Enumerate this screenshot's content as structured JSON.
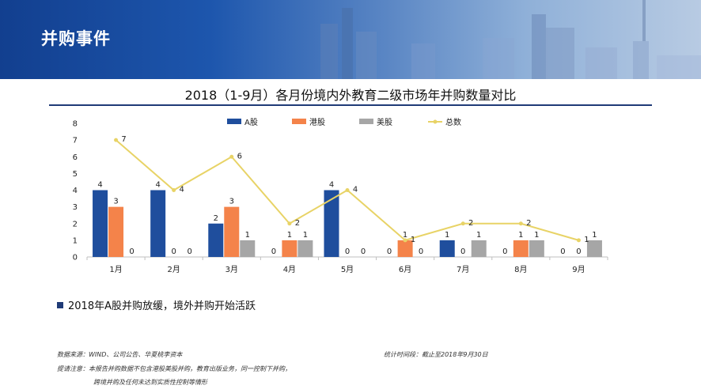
{
  "banner": {
    "title": "并购事件"
  },
  "chart_data": {
    "type": "bar+line",
    "title": "2018（1-9月）各月份境内外教育二级市场年并购数量对比",
    "categories": [
      "1月",
      "2月",
      "3月",
      "4月",
      "5月",
      "6月",
      "7月",
      "8月",
      "9月"
    ],
    "series": [
      {
        "name": "A股",
        "type": "bar",
        "color": "#1f4e9d",
        "values": [
          4,
          4,
          2,
          0,
          4,
          0,
          1,
          0,
          0
        ]
      },
      {
        "name": "港股",
        "type": "bar",
        "color": "#f4834a",
        "values": [
          3,
          0,
          3,
          1,
          0,
          1,
          0,
          1,
          0
        ]
      },
      {
        "name": "美股",
        "type": "bar",
        "color": "#a6a6a6",
        "values": [
          0,
          0,
          1,
          1,
          0,
          0,
          1,
          1,
          1
        ]
      },
      {
        "name": "总数",
        "type": "line",
        "color": "#e8d366",
        "values": [
          7,
          4,
          6,
          2,
          4,
          1,
          2,
          2,
          1
        ]
      }
    ],
    "yticks": [
      "0",
      "1",
      "2",
      "3",
      "4",
      "5",
      "6",
      "7",
      "8"
    ],
    "ylim": [
      0,
      8
    ],
    "legend": "top",
    "grid": false
  },
  "note": "2018年A股并购放缓，境外并购开始活跃",
  "footer": {
    "source": "数据来源：WIND、公司公告、华夏桃李资本",
    "period": "统计时间段：截止至2018年9月30日",
    "remark1": "提请注意：本报告并购数据不包含港股美股并购，教育出版业务，同一控制下并购，",
    "remark2": "跨境并购及任何未达到实质性控制等情形"
  }
}
